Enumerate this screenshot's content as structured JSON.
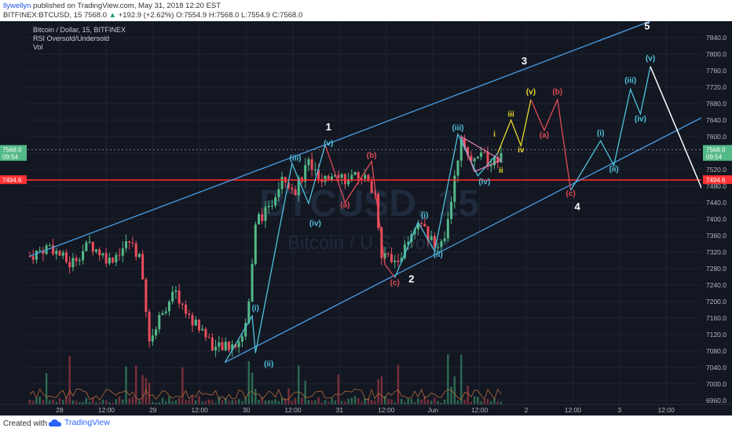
{
  "header": {
    "user": "llywellyn",
    "published": "published on TradingView.com, May 31, 2018 12:20 EST",
    "symbol": "BITFINEX:BTCUSD, 15",
    "last": "7568.0",
    "arrow": "▲",
    "change": "+192.9 (+2.62%)",
    "ohlc": "O:7554.9 H:7568.0 L:7554.9 C:7568.0"
  },
  "legend": {
    "title": "Bitcoin / Dollar, 15, BITFINEX",
    "line2": "RSI Oversold/Undersold",
    "line3": "Vol"
  },
  "watermark": {
    "symbol": "BTCUSD, 15",
    "name": "Bitcoin / U.S. Dollar"
  },
  "footer": {
    "created": "Created with",
    "brand": "TradingView"
  },
  "colors": {
    "background": "#131722",
    "up": "#53b987",
    "down": "#eb4d5c",
    "channel": "#4a9ee6",
    "wave_cyan": "#4fc3dc",
    "wave_red": "#e04a55",
    "wave_yellow": "#e8d829",
    "price_tag": "#53b987",
    "level_tag": "#ff3333"
  },
  "chart_data": {
    "type": "candlestick",
    "title": "Bitcoin / Dollar, 15, BITFINEX",
    "y_axis": {
      "range": [
        6950,
        7880
      ],
      "ticks": [
        "6960.0",
        "7000.0",
        "7040.0",
        "7080.0",
        "7120.0",
        "7160.0",
        "7200.0",
        "7240.0",
        "7280.0",
        "7320.0",
        "7360.0",
        "7400.0",
        "7440.0",
        "7480.0",
        "7520.0",
        "7560.0",
        "7600.0",
        "7640.0",
        "7680.0",
        "7720.0",
        "7760.0",
        "7800.0",
        "7840.0"
      ]
    },
    "x_axis": {
      "ticks": [
        "28",
        "12:00",
        "29",
        "12:00",
        "30",
        "12:00",
        "31",
        "12:00",
        "Jun",
        "12:00",
        "2",
        "12:00",
        "3",
        "12:00"
      ]
    },
    "price_tags": [
      {
        "price": 7568.0,
        "label": "7568.0",
        "sub": "09:54",
        "color": "#53b987"
      },
      {
        "price": 7494.6,
        "label": "7494.6",
        "color": "#ff3333"
      }
    ],
    "horizontal_level": 7494.6,
    "anchors": [
      {
        "x": 0,
        "y": 7310
      },
      {
        "x": 3,
        "y": 7335
      },
      {
        "x": 6,
        "y": 7290
      },
      {
        "x": 9,
        "y": 7340
      },
      {
        "x": 12,
        "y": 7300
      },
      {
        "x": 15,
        "y": 7345
      },
      {
        "x": 16.5,
        "y": 7310
      },
      {
        "x": 18,
        "y": 7100
      },
      {
        "x": 20,
        "y": 7180
      },
      {
        "x": 22,
        "y": 7220
      },
      {
        "x": 24,
        "y": 7160
      },
      {
        "x": 26,
        "y": 7130
      },
      {
        "x": 28,
        "y": 7085
      },
      {
        "x": 30,
        "y": 7090
      },
      {
        "x": 32,
        "y": 7110
      },
      {
        "x": 33,
        "y": 7200
      },
      {
        "x": 34,
        "y": 7400
      },
      {
        "x": 36,
        "y": 7420
      },
      {
        "x": 38,
        "y": 7510
      },
      {
        "x": 40,
        "y": 7470
      },
      {
        "x": 42,
        "y": 7540
      },
      {
        "x": 44,
        "y": 7480
      },
      {
        "x": 46,
        "y": 7520
      },
      {
        "x": 48,
        "y": 7490
      },
      {
        "x": 50,
        "y": 7510
      },
      {
        "x": 52,
        "y": 7460
      },
      {
        "x": 53,
        "y": 7320
      },
      {
        "x": 55,
        "y": 7290
      },
      {
        "x": 57,
        "y": 7340
      },
      {
        "x": 59,
        "y": 7390
      },
      {
        "x": 61,
        "y": 7330
      },
      {
        "x": 62.5,
        "y": 7360
      },
      {
        "x": 64,
        "y": 7500
      },
      {
        "x": 65,
        "y": 7600
      },
      {
        "x": 66.5,
        "y": 7530
      },
      {
        "x": 68,
        "y": 7565
      },
      {
        "x": 69.5,
        "y": 7520
      },
      {
        "x": 71,
        "y": 7568
      }
    ],
    "channel_upper": [
      {
        "x": 0,
        "y": 7310
      },
      {
        "x": 44.5,
        "y": 7580
      },
      {
        "x": 93.5,
        "y": 7880
      }
    ],
    "channel_lower": [
      {
        "x": 29.4,
        "y": 7052
      },
      {
        "x": 115,
        "y": 7760
      }
    ],
    "waves": [
      {
        "color": "#4fc3dc",
        "points": [
          [
            29.4,
            7052
          ],
          [
            33.5,
            7165
          ],
          [
            34,
            7075
          ],
          [
            39.5,
            7535
          ],
          [
            42,
            7438
          ],
          [
            44.5,
            7580
          ]
        ]
      },
      {
        "color": "#e04a55",
        "points": [
          [
            44.5,
            7580
          ],
          [
            47.5,
            7440
          ],
          [
            51.5,
            7540
          ],
          [
            53.5,
            7290
          ],
          [
            55,
            7258
          ]
        ]
      },
      {
        "color": "#4fc3dc",
        "points": [
          [
            55,
            7258
          ],
          [
            58.5,
            7392
          ],
          [
            61,
            7322
          ],
          [
            64.5,
            7606
          ],
          [
            67.5,
            7505
          ],
          [
            70.5,
            7560
          ]
        ]
      },
      {
        "color": "#e8d829",
        "points": [
          [
            70.5,
            7560
          ],
          [
            72.5,
            7640
          ],
          [
            74,
            7578
          ],
          [
            75.5,
            7690
          ]
        ]
      },
      {
        "color": "#e04a55",
        "points": [
          [
            75.5,
            7690
          ],
          [
            77.5,
            7615
          ],
          [
            79.5,
            7690
          ],
          [
            81.5,
            7470
          ]
        ]
      },
      {
        "color": "#4fc3dc",
        "points": [
          [
            81.5,
            7470
          ],
          [
            86,
            7590
          ],
          [
            88,
            7530
          ],
          [
            90.5,
            7715
          ],
          [
            92,
            7655
          ],
          [
            93.5,
            7770
          ]
        ]
      }
    ],
    "triangle": [
      [
        65,
        7600
      ],
      [
        71,
        7543
      ],
      [
        67,
        7515
      ]
    ],
    "arrow": [
      [
        93.5,
        7770
      ],
      [
        102,
        7445
      ]
    ],
    "labels": [
      {
        "text": "5",
        "x": 93,
        "y": 7860,
        "color": "#ffffff",
        "size": 13
      },
      {
        "text": "3",
        "x": 74.5,
        "y": 7775,
        "color": "#ffffff",
        "size": 13
      },
      {
        "text": "1",
        "x": 45,
        "y": 7615,
        "color": "#ffffff",
        "size": 13
      },
      {
        "text": "(v)",
        "x": 45,
        "y": 7578,
        "color": "#4fc3dc",
        "size": 10
      },
      {
        "text": "(iii)",
        "x": 40,
        "y": 7542,
        "color": "#4fc3dc",
        "size": 10
      },
      {
        "text": "(b)",
        "x": 51.5,
        "y": 7548,
        "color": "#e04a55",
        "size": 10
      },
      {
        "text": "(a)",
        "x": 47.5,
        "y": 7428,
        "color": "#e04a55",
        "size": 10
      },
      {
        "text": "(iv)",
        "x": 43,
        "y": 7384,
        "color": "#4fc3dc",
        "size": 10
      },
      {
        "text": "(iii)",
        "x": 64.5,
        "y": 7615,
        "color": "#4fc3dc",
        "size": 10
      },
      {
        "text": "i",
        "x": 70,
        "y": 7600,
        "color": "#e8d829",
        "size": 10
      },
      {
        "text": "iii",
        "x": 72.5,
        "y": 7648,
        "color": "#e8d829",
        "size": 10
      },
      {
        "text": "iv",
        "x": 74,
        "y": 7562,
        "color": "#e8d829",
        "size": 10
      },
      {
        "text": "ii",
        "x": 71,
        "y": 7512,
        "color": "#e8d829",
        "size": 10
      },
      {
        "text": "(iv)",
        "x": 68.5,
        "y": 7485,
        "color": "#4fc3dc",
        "size": 10
      },
      {
        "text": "(v)",
        "x": 75.5,
        "y": 7703,
        "color": "#e8d829",
        "size": 10
      },
      {
        "text": "(b)",
        "x": 79.5,
        "y": 7703,
        "color": "#e04a55",
        "size": 10
      },
      {
        "text": "(a)",
        "x": 77.5,
        "y": 7598,
        "color": "#e04a55",
        "size": 10
      },
      {
        "text": "(c)",
        "x": 81.5,
        "y": 7456,
        "color": "#e04a55",
        "size": 10
      },
      {
        "text": "4",
        "x": 82.5,
        "y": 7422,
        "color": "#ffffff",
        "size": 13
      },
      {
        "text": "(i)",
        "x": 86,
        "y": 7603,
        "color": "#4fc3dc",
        "size": 10
      },
      {
        "text": "(ii)",
        "x": 88,
        "y": 7515,
        "color": "#4fc3dc",
        "size": 10
      },
      {
        "text": "(iii)",
        "x": 90.5,
        "y": 7730,
        "color": "#4fc3dc",
        "size": 10
      },
      {
        "text": "(iv)",
        "x": 92,
        "y": 7637,
        "color": "#4fc3dc",
        "size": 10
      },
      {
        "text": "(v)",
        "x": 93.5,
        "y": 7784,
        "color": "#4fc3dc",
        "size": 10
      },
      {
        "text": "(i)",
        "x": 59.5,
        "y": 7404,
        "color": "#4fc3dc",
        "size": 10
      },
      {
        "text": "(ii)",
        "x": 61.5,
        "y": 7308,
        "color": "#4fc3dc",
        "size": 10
      },
      {
        "text": "(c)",
        "x": 55,
        "y": 7240,
        "color": "#e04a55",
        "size": 10
      },
      {
        "text": "2",
        "x": 57.5,
        "y": 7246,
        "color": "#ffffff",
        "size": 13
      },
      {
        "text": "(i)",
        "x": 34,
        "y": 7178,
        "color": "#4fc3dc",
        "size": 10
      },
      {
        "text": "(ii)",
        "x": 36,
        "y": 7042,
        "color": "#4fc3dc",
        "size": 10
      }
    ]
  }
}
